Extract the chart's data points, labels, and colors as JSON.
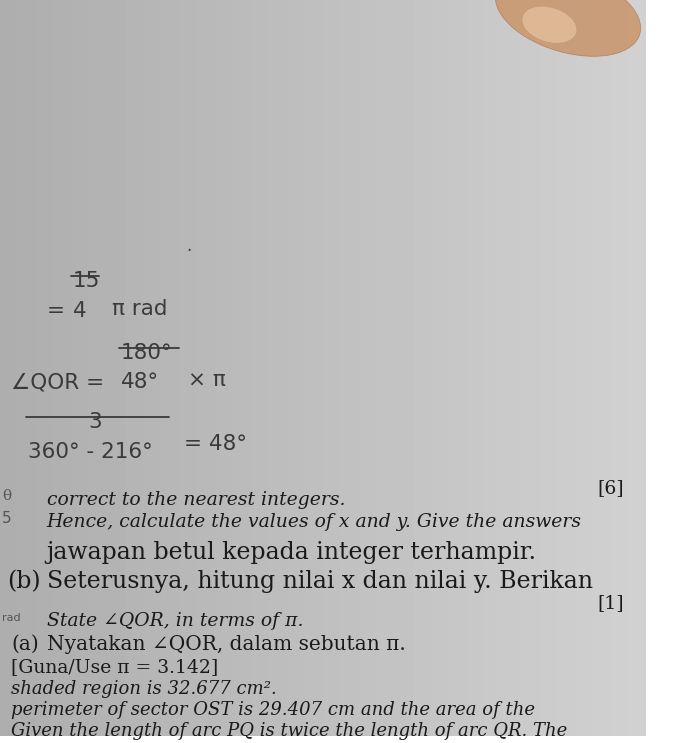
{
  "bg_gradient_left": "#b8b8b8",
  "bg_gradient_right": "#d8d8d8",
  "page_color": "#d0d0d0",
  "text_color": "#1a1a1a",
  "handwrite_color": "#3a3a3a",
  "title_lines": [
    "Given the length of arc PQ is twice the length of arc QR. The",
    "perimeter of sector OST is 29.407 cm and the area of the",
    "shaded region is 32.677 cm²."
  ],
  "use_pi": "[Guna/Use π = 3.142]",
  "part_a_label": "(a)",
  "part_a_malay": "Nyatakan ∠QOR, dalam sebutan π.",
  "part_a_english": "State ∠QOR, in terms of π.",
  "marks_a": "[1]",
  "part_b_label": "(b)",
  "part_b_malay_1": "Seterusnya, hitung nilai x dan nilai y. Berikan",
  "part_b_malay_2": "jawapan betul kepada integer terhampir.",
  "part_b_english_1": "Hence, calculate the values of x and y. Give the answers",
  "part_b_english_2": "correct to the nearest integers.",
  "marks_b": "[6]",
  "margin_5": "5",
  "margin_theta": "θ",
  "margin_rad": "rad",
  "hw_frac1_num": "360° - 216°",
  "hw_frac1_denom": "3",
  "hw_frac1_result": "= 48°",
  "hw_angle_label": "∠QOR =",
  "hw_frac2_num": "48°",
  "hw_frac2_denom": "180°",
  "hw_frac2_right": "× π",
  "hw_eq2": "=",
  "hw_frac3_num": "4",
  "hw_frac3_denom": "15",
  "hw_frac3_right": "π rad",
  "hw_dot": ".",
  "figwidth": 6.93,
  "figheight": 7.43,
  "dpi": 100
}
